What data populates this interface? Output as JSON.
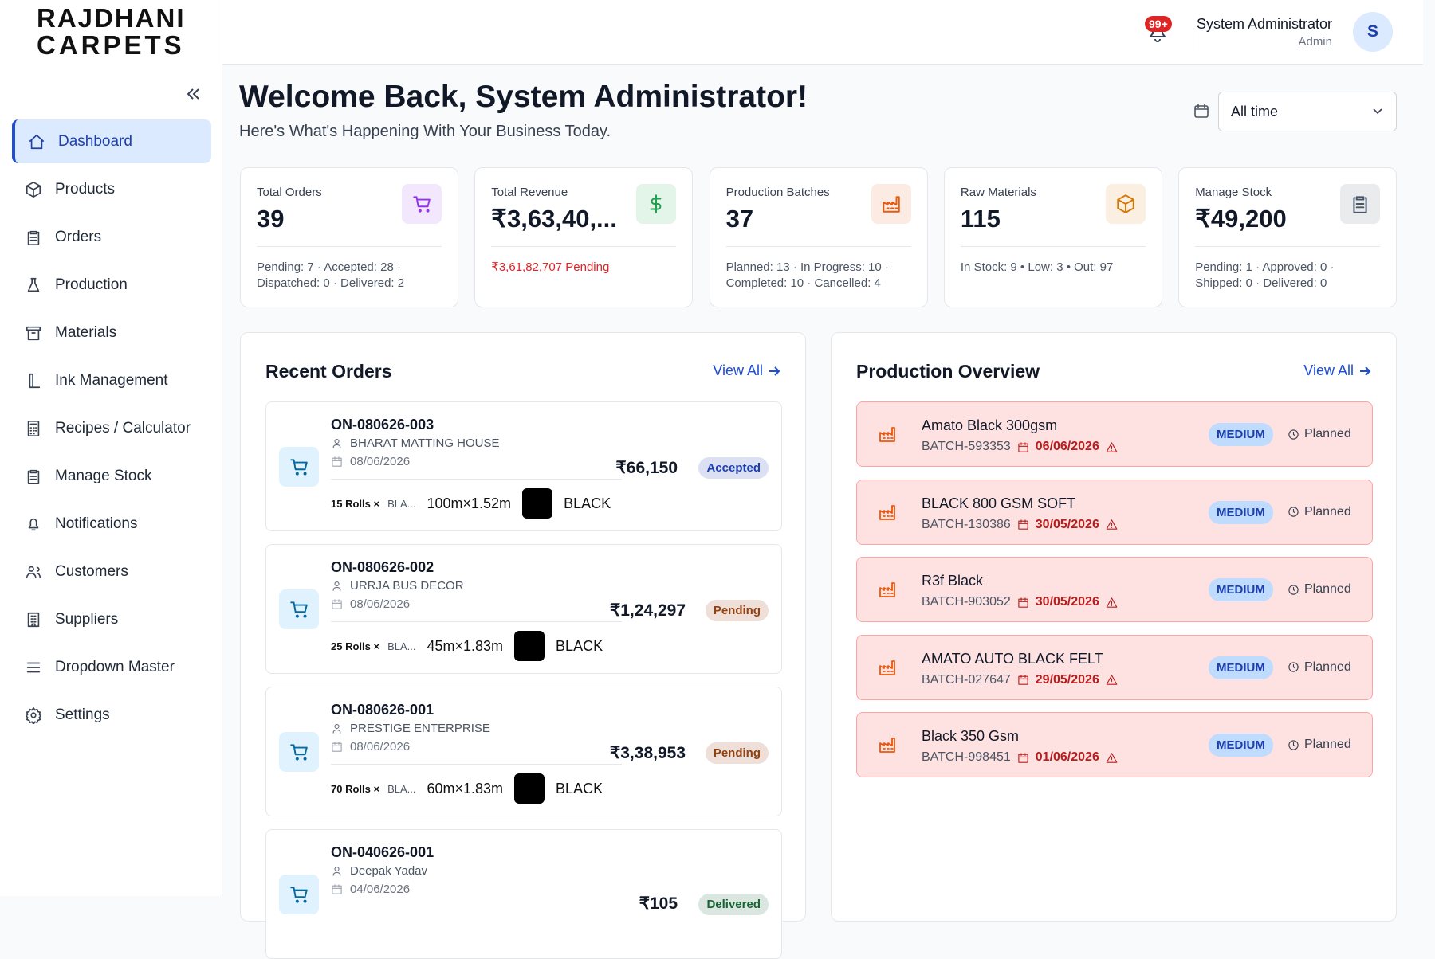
{
  "brand": {
    "line1": "RAJDHANI",
    "line2": "CARPETS"
  },
  "header": {
    "badge": "99+",
    "user_name": "System Administrator",
    "user_role": "Admin",
    "avatar": "S"
  },
  "nav": [
    "Dashboard",
    "Products",
    "Orders",
    "Production",
    "Materials",
    "Ink Management",
    "Recipes / Calculator",
    "Manage Stock",
    "Notifications",
    "Customers",
    "Suppliers",
    "Dropdown Master",
    "Settings"
  ],
  "welcome": {
    "title": "Welcome Back, System Administrator!",
    "subtitle": "Here's What's Happening With Your Business Today.",
    "date_filter": "All time"
  },
  "stats": [
    {
      "label": "Total Orders",
      "value": "39",
      "details": "Pending: 7 · Accepted: 28 · Dispatched: 0 · Delivered: 2",
      "color": "#9333ea"
    },
    {
      "label": "Total Revenue",
      "value": "₹3,63,40,...",
      "details": "₹3,61,82,707 Pending",
      "color": "#16a34a"
    },
    {
      "label": "Production Batches",
      "value": "37",
      "details": "Planned: 13 · In Progress: 10 · Completed: 10 · Cancelled: 4",
      "color": "#ea580c"
    },
    {
      "label": "Raw Materials",
      "value": "115",
      "details": "In Stock: 9 • Low: 3 • Out: 97",
      "color": "#d97706"
    },
    {
      "label": "Manage Stock",
      "value": "₹49,200",
      "details": "Pending: 1 · Approved: 0 · Shipped: 0 · Delivered: 0",
      "color": "#475569"
    }
  ],
  "recent_orders": {
    "title": "Recent Orders",
    "view_all": "View All",
    "orders": [
      {
        "id": "ON-080626-003",
        "customer": "BHARAT MATTING HOUSE",
        "date": "08/06/2026",
        "amount": "₹66,150",
        "status": "Accepted",
        "status_color": "#1e40af",
        "rolls": "15 Rolls ×",
        "material": "BLA...",
        "size": "100m×1.52m",
        "color": "BLACK"
      },
      {
        "id": "ON-080626-002",
        "customer": "URRJA BUS DECOR",
        "date": "08/06/2026",
        "amount": "₹1,24,297",
        "status": "Pending",
        "status_color": "#92400e",
        "rolls": "25 Rolls ×",
        "material": "BLA...",
        "size": "45m×1.83m",
        "color": "BLACK"
      },
      {
        "id": "ON-080626-001",
        "customer": "PRESTIGE ENTERPRISE",
        "date": "08/06/2026",
        "amount": "₹3,38,953",
        "status": "Pending",
        "status_color": "#92400e",
        "rolls": "70 Rolls ×",
        "material": "BLA...",
        "size": "60m×1.83m",
        "color": "BLACK"
      },
      {
        "id": "ON-040626-001",
        "customer": "Deepak Yadav",
        "date": "04/06/2026",
        "amount": "₹105",
        "status": "Delivered",
        "status_color": "#166534"
      }
    ]
  },
  "production": {
    "title": "Production Overview",
    "view_all": "View All",
    "batches": [
      {
        "name": "Amato Black 300gsm",
        "batch": "BATCH-593353",
        "date": "06/06/2026",
        "priority": "MEDIUM",
        "status": "Planned"
      },
      {
        "name": "BLACK 800 GSM SOFT",
        "batch": "BATCH-130386",
        "date": "30/05/2026",
        "priority": "MEDIUM",
        "status": "Planned"
      },
      {
        "name": "R3f Black",
        "batch": "BATCH-903052",
        "date": "30/05/2026",
        "priority": "MEDIUM",
        "status": "Planned"
      },
      {
        "name": "AMATO AUTO BLACK FELT",
        "batch": "BATCH-027647",
        "date": "29/05/2026",
        "priority": "MEDIUM",
        "status": "Planned"
      },
      {
        "name": "Black 350 Gsm",
        "batch": "BATCH-998451",
        "date": "01/06/2026",
        "priority": "MEDIUM",
        "status": "Planned"
      }
    ]
  }
}
